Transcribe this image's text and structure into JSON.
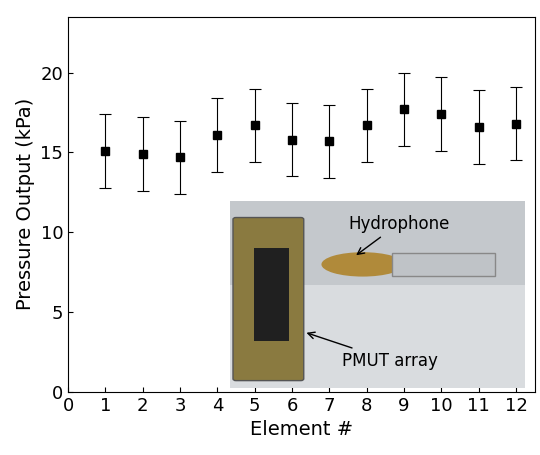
{
  "chart_data": {
    "type": "scatter",
    "x_label": "Element #",
    "y_label": "Pressure Output (kPa)",
    "x": [
      1,
      2,
      3,
      4,
      5,
      6,
      7,
      8,
      9,
      10,
      11,
      12
    ],
    "values": [
      15.1,
      14.9,
      14.7,
      16.1,
      16.7,
      15.8,
      15.7,
      16.7,
      17.7,
      17.4,
      16.6,
      16.8
    ],
    "error": [
      2.3,
      2.3,
      2.3,
      2.3,
      2.3,
      2.3,
      2.3,
      2.3,
      2.3,
      2.3,
      2.3,
      2.3
    ],
    "color": "#000000",
    "marker": "s",
    "xlim": [
      0,
      12.5
    ],
    "xticks": [
      0,
      1,
      2,
      3,
      4,
      5,
      6,
      7,
      8,
      9,
      10,
      11,
      12
    ],
    "ylim": [
      0,
      23.5
    ],
    "yticks": [
      0,
      5,
      10,
      15,
      20
    ],
    "grid": false,
    "annotations": [
      {
        "text": "Hydrophone"
      },
      {
        "text": "PMUT array"
      }
    ]
  }
}
